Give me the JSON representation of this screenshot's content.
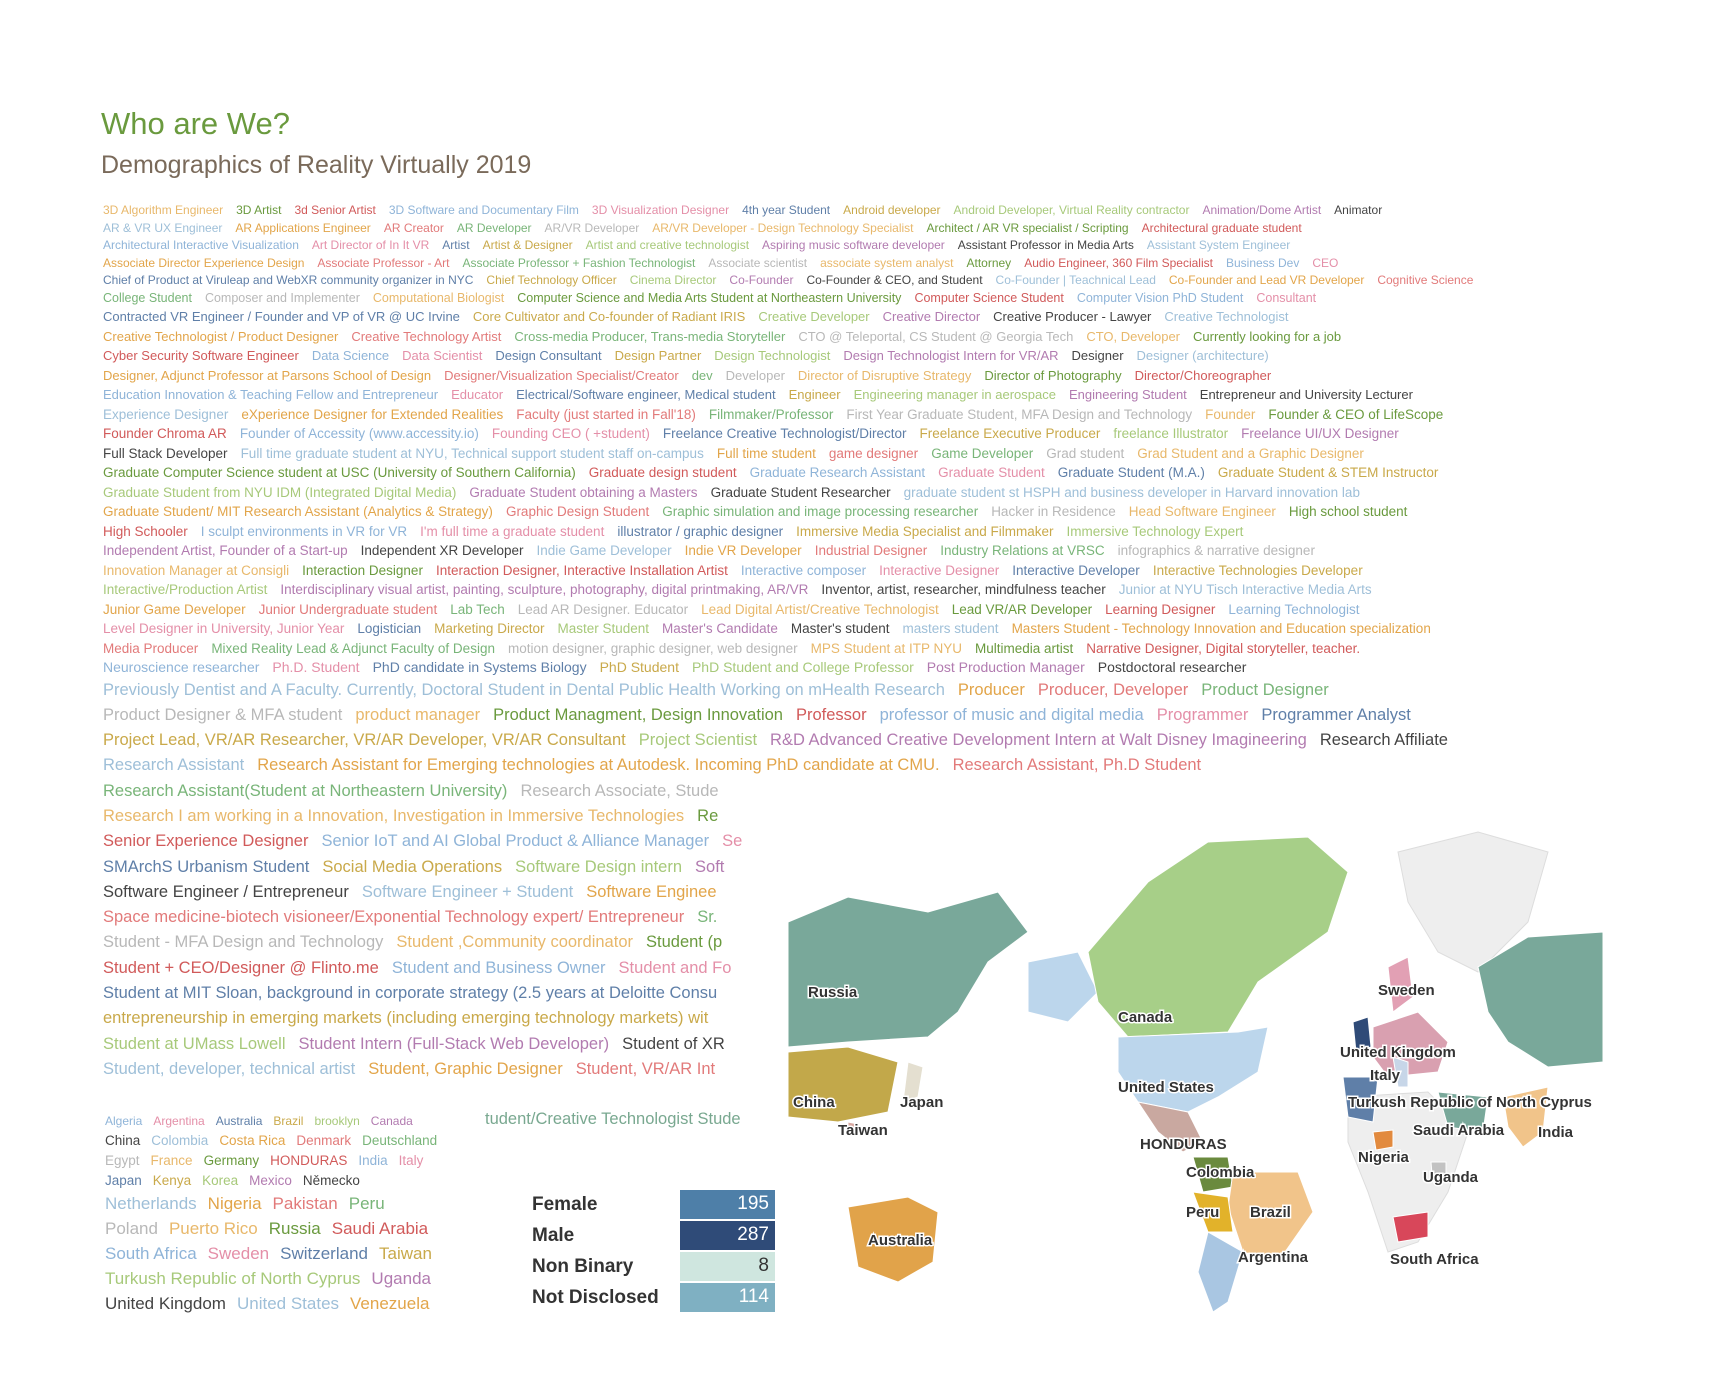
{
  "title": "Who are We?",
  "subtitle": "Demographics of Reality Virtually 2019",
  "colors": {
    "title": "#6a9a3e",
    "subtitle": "#7a6a5a",
    "palette": [
      "#e8b86b",
      "#6a9a3e",
      "#d15a5a",
      "#8fb4d8",
      "#e48fa8",
      "#5f7fa8",
      "#c9a94a",
      "#a7c97a",
      "#b27bb0",
      "#444444",
      "#9ebfd8",
      "#e2a54a",
      "#e27a7a",
      "#79b579",
      "#b8b8b8"
    ]
  },
  "roles_lines": [
    {
      "size": 12,
      "items": [
        "3D Algorithm Engineer",
        "3D Artist",
        "3d Senior Artist",
        "3D Software and Documentary Film",
        "3D Visualization Designer",
        "4th year Student",
        "Android developer",
        "Android Developer, Virtual Reality contractor",
        "Animation/Dome Artist",
        "Animator"
      ]
    },
    {
      "size": 12,
      "items": [
        "AR & VR UX Engineer",
        "AR Applications Engineer",
        "AR Creator",
        "AR Developer",
        "AR/VR Developer",
        "AR/VR Developer - Design Technology Specialist",
        "Architect / AR VR specialist / Scripting",
        "Architectural graduate student"
      ]
    },
    {
      "size": 12,
      "items": [
        "Architectural Interactive Visualization",
        "Art Director of In It VR",
        "Artist",
        "Artist & Designer",
        "Artist and creative technologist",
        "Aspiring music software developer",
        "Assistant Professor in Media Arts",
        "Assistant System Engineer"
      ]
    },
    {
      "size": 12,
      "items": [
        "Associate Director Experience Design",
        "Associate Professor - Art",
        "Associate Professor + Fashion Technologist",
        "Associate scientist",
        "associate system analyst",
        "Attorney",
        "Audio Engineer, 360 Film Specialist",
        "Business Dev",
        "CEO"
      ]
    },
    {
      "size": 12,
      "items": [
        "Chief of Product at Viruleap and WebXR community organizer in NYC",
        "Chief Technology Officer",
        "Cinema Director",
        "Co-Founder",
        "Co-Founder & CEO, and Student",
        "Co-Founder | Teachnical Lead",
        "Co-Founder and Lead VR Developer",
        "Cognitive Science"
      ]
    },
    {
      "size": 12.5,
      "items": [
        "College Student",
        "Composer and Implementer",
        "Computational Biologist",
        "Computer Science and Media Arts Student at Northeastern University",
        "Computer Science Student",
        "Computer Vision PhD Student",
        "Consultant"
      ]
    },
    {
      "size": 13,
      "items": [
        "Contracted VR Engineer / Founder and VP of VR @ UC Irvine",
        "Core Cultivator and Co-founder of Radiant IRIS",
        "Creative Developer",
        "Creative Director",
        "Creative Producer - Lawyer",
        "Creative Technologist"
      ]
    },
    {
      "size": 13,
      "items": [
        "Creative Technologist / Product Designer",
        "Creative Technology Artist",
        "Cross-media Producer, Trans-media Storyteller",
        "CTO @ Teleportal, CS Student @ Georgia Tech",
        "CTO, Developer",
        "Currently looking for a job"
      ]
    },
    {
      "size": 13,
      "items": [
        "Cyber Security Software Engineer",
        "Data Science",
        "Data Scientist",
        "Design Consultant",
        "Design Partner",
        "Design Technologist",
        "Design Technologist Intern for VR/AR",
        "Designer",
        "Designer (architecture)"
      ]
    },
    {
      "size": 13,
      "items": [
        "Designer, Adjunct Professor at Parsons School of Design",
        "Designer/Visualization Specialist/Creator",
        "dev",
        "Developer",
        "Director of Disruptive Strategy",
        "Director of Photography",
        "Director/Choreographer"
      ]
    },
    {
      "size": 13,
      "items": [
        "Education Innovation & Teaching Fellow and Entrepreneur",
        "Educator",
        "Electrical/Software engineer, Medical student",
        "Engineer",
        "Engineering manager in aerospace",
        "Engineering Student",
        "Entrepreneur and University Lecturer"
      ]
    },
    {
      "size": 13.5,
      "items": [
        "Experience Designer",
        "eXperience Designer for Extended Realities",
        "Faculty (just started in Fall'18)",
        "Filmmaker/Professor",
        "First Year Graduate Student, MFA Design and Technology",
        "Founder",
        "Founder & CEO of LifeScope"
      ]
    },
    {
      "size": 13.5,
      "items": [
        "Founder Chroma AR",
        "Founder of Accessity (www.accessity.io)",
        "Founding CEO ( +student)",
        "Freelance Creative Technologist/Director",
        "Freelance Executive Producer",
        "freelance Illustrator",
        "Freelance UI/UX Designer"
      ]
    },
    {
      "size": 13.5,
      "items": [
        "Full Stack Developer",
        "Full time graduate student at NYU, Technical support student staff on-campus",
        "Full time student",
        "game designer",
        "Game Developer",
        "Grad student",
        "Grad Student and a Graphic Designer"
      ]
    },
    {
      "size": 13.5,
      "items": [
        "Graduate Computer Science student at USC (University of Southern California)",
        "Graduate design student",
        "Graduate Research Assistant",
        "Graduate Student",
        "Graduate Student (M.A.)",
        "Graduate Student & STEM Instructor"
      ]
    },
    {
      "size": 13.5,
      "items": [
        "Graduate Student from NYU IDM (Integrated Digital Media)",
        "Graduate Student obtaining a Masters",
        "Graduate Student Researcher",
        "graduate student st HSPH and business developer in Harvard innovation lab"
      ]
    },
    {
      "size": 13.5,
      "items": [
        "Graduate Student/ MIT Research Assistant (Analytics & Strategy)",
        "Graphic Design Student",
        "Graphic simulation and image processing researcher",
        "Hacker in Residence",
        "Head Software Engineer",
        "High school student"
      ]
    },
    {
      "size": 13.5,
      "items": [
        "High Schooler",
        "I sculpt environments in VR for VR",
        "I'm full time a graduate student",
        "illustrator / graphic designer",
        "Immersive Media Specialist and Filmmaker",
        "Immersive Technology Expert"
      ]
    },
    {
      "size": 13.5,
      "items": [
        "Independent Artist, Founder of a Start-up",
        "Independent XR Developer",
        "Indie Game Developer",
        "Indie VR Developer",
        "Industrial Designer",
        "Industry Relations at VRSC",
        "infographics & narrative designer"
      ]
    },
    {
      "size": 13.5,
      "items": [
        "Innovation Manager at Consigli",
        "Interaction Designer",
        "Interaction Designer, Interactive Installation Artist",
        "Interactive composer",
        "Interactive Designer",
        "Interactive Developer",
        "Interactive Technologies Developer"
      ]
    },
    {
      "size": 13.5,
      "items": [
        "Interactive/Production Artist",
        "Interdisciplinary visual artist, painting, sculpture, photography, digital printmaking, AR/VR",
        "Inventor, artist, researcher, mindfulness teacher",
        "Junior at NYU Tisch Interactive Media Arts"
      ]
    },
    {
      "size": 13.5,
      "items": [
        "Junior Game Developer",
        "Junior Undergraduate student",
        "Lab Tech",
        "Lead AR Designer. Educator",
        "Lead Digital Artist/Creative Technologist",
        "Lead VR/AR Developer",
        "Learning Designer",
        "Learning Technologist"
      ]
    },
    {
      "size": 13.5,
      "items": [
        "Level Designer in University, Junior Year",
        "Logistician",
        "Marketing Director",
        "Master Student",
        "Master's Candidate",
        "Master's student",
        "masters student",
        "Masters Student - Technology Innovation and Education specialization"
      ]
    },
    {
      "size": 13.5,
      "items": [
        "Media Producer",
        "Mixed Reality Lead & Adjunct Faculty of Design",
        "motion designer, graphic designer, web designer",
        "MPS Student at ITP NYU",
        "Multimedia artist",
        "Narrative Designer, Digital storyteller, teacher."
      ]
    },
    {
      "size": 14,
      "items": [
        "Neuroscience researcher",
        "Ph.D. Student",
        "PhD candidate in Systems Biology",
        "PhD Student",
        "PhD Student and College Professor",
        "Post Production Manager",
        "Postdoctoral researcher"
      ]
    },
    {
      "size": 16.5,
      "items": [
        "Previously Dentist and A Faculty. Currently, Doctoral Student in Dental Public Health Working on mHealth Research",
        "Producer",
        "Producer, Developer",
        "Product Designer"
      ]
    },
    {
      "size": 16.5,
      "items": [
        "Product Designer & MFA student",
        "product manager",
        "Product Managment, Design Innovation",
        "Professor",
        "professor of music and digital media",
        "Programmer",
        "Programmer Analyst"
      ]
    },
    {
      "size": 16.5,
      "items": [
        "Project Lead, VR/AR Researcher, VR/AR Developer, VR/AR Consultant",
        "Project Scientist",
        "R&D Advanced Creative Development Intern at Walt Disney Imagineering",
        "Research Affiliate"
      ]
    },
    {
      "size": 16.5,
      "items": [
        "Research Assistant",
        "Research Assistant for Emerging technologies at Autodesk. Incoming PhD candidate at CMU.",
        "Research Assistant, Ph.D Student"
      ]
    },
    {
      "size": 16.5,
      "items": [
        "Research Assistant(Student at Northeastern University)",
        "Research Associate, Stude"
      ]
    },
    {
      "size": 16.5,
      "items": [
        "Research I am working in a Innovation, Investigation  in Immersive Technologies",
        "Re"
      ]
    },
    {
      "size": 16.5,
      "items": [
        "Senior Experience Designer",
        "Senior IoT and AI Global Product & Alliance Manager",
        "Se"
      ]
    },
    {
      "size": 16.5,
      "items": [
        "SMArchS Urbanism Student",
        "Social Media Operations",
        "Software Design intern",
        "Soft"
      ]
    },
    {
      "size": 16.5,
      "items": [
        "Software Engineer / Entrepreneur",
        "Software Engineer + Student",
        "Software Enginee"
      ]
    },
    {
      "size": 16.5,
      "items": [
        "Space medicine-biotech visioneer/Exponential Technology expert/ Entrepreneur",
        "Sr."
      ]
    },
    {
      "size": 16.5,
      "items": [
        "Student - MFA Design and Technology",
        "Student ,Community coordinator",
        "Student (p"
      ]
    },
    {
      "size": 16.5,
      "items": [
        "Student + CEO/Designer @ Flinto.me",
        "Student and Business Owner",
        "Student and Fo"
      ]
    },
    {
      "size": 16.5,
      "items": [
        "Student at MIT Sloan, background in corporate strategy (2.5 years at Deloitte Consu"
      ]
    },
    {
      "size": 16.5,
      "items": [
        "entrepreneurship in emerging markets (including emerging technology markets) wit"
      ]
    },
    {
      "size": 16.5,
      "items": [
        "Student at UMass Lowell",
        "Student Intern (Full-Stack Web Developer)",
        "Student of XR"
      ]
    },
    {
      "size": 16.5,
      "items": [
        "Student, developer, technical artist",
        "Student, Graphic Designer",
        "Student, VR/AR Int"
      ]
    }
  ],
  "extra_role": "tudent/Creative Technologist  Stude",
  "country_lines": [
    {
      "size": 12,
      "items": [
        "Algeria",
        "Argentina",
        "Australia",
        "Brazil",
        "brooklyn",
        "Canada"
      ]
    },
    {
      "size": 13.5,
      "items": [
        "China",
        "Colombia",
        "Costa Rica",
        "Denmark",
        "Deutschland"
      ]
    },
    {
      "size": 13.5,
      "items": [
        "Egypt",
        "France",
        "Germany",
        "HONDURAS",
        "India",
        "Italy"
      ]
    },
    {
      "size": 13.5,
      "items": [
        "Japan",
        "Kenya",
        "Korea",
        "Mexico",
        "Německo"
      ]
    },
    {
      "size": 17,
      "items": [
        "Netherlands",
        "Nigeria",
        "Pakistan",
        "Peru"
      ]
    },
    {
      "size": 17,
      "items": [
        "Poland",
        "Puerto Rico",
        "Russia",
        "Saudi Arabia"
      ]
    },
    {
      "size": 17,
      "items": [
        "South Africa",
        "Sweden",
        "Switzerland",
        "Taiwan"
      ]
    },
    {
      "size": 17,
      "items": [
        "Turkush Republic of North Cyprus",
        "Uganda"
      ]
    },
    {
      "size": 17,
      "items": [
        "United Kingdom",
        "United States",
        "Venezuela"
      ]
    }
  ],
  "chart_data": {
    "type": "table",
    "title": "",
    "categories": [
      "Female",
      "Male",
      "Non Binary",
      "Not Disclosed"
    ],
    "values": [
      195,
      287,
      8,
      114
    ],
    "colors": [
      "#4e7fa8",
      "#2f4b78",
      "#cfe6df",
      "#7fb0c2"
    ]
  },
  "map": {
    "labels": [
      "Russia",
      "Canada",
      "United States",
      "HONDURAS",
      "Colombia",
      "Peru",
      "Brazil",
      "Argentina",
      "Australia",
      "China",
      "Japan",
      "Taiwan",
      "Sweden",
      "United Kingdom",
      "Italy",
      "Turkush Republic of North Cyprus",
      "Saudi Arabia",
      "India",
      "Nigeria",
      "Uganda",
      "South Africa"
    ]
  }
}
